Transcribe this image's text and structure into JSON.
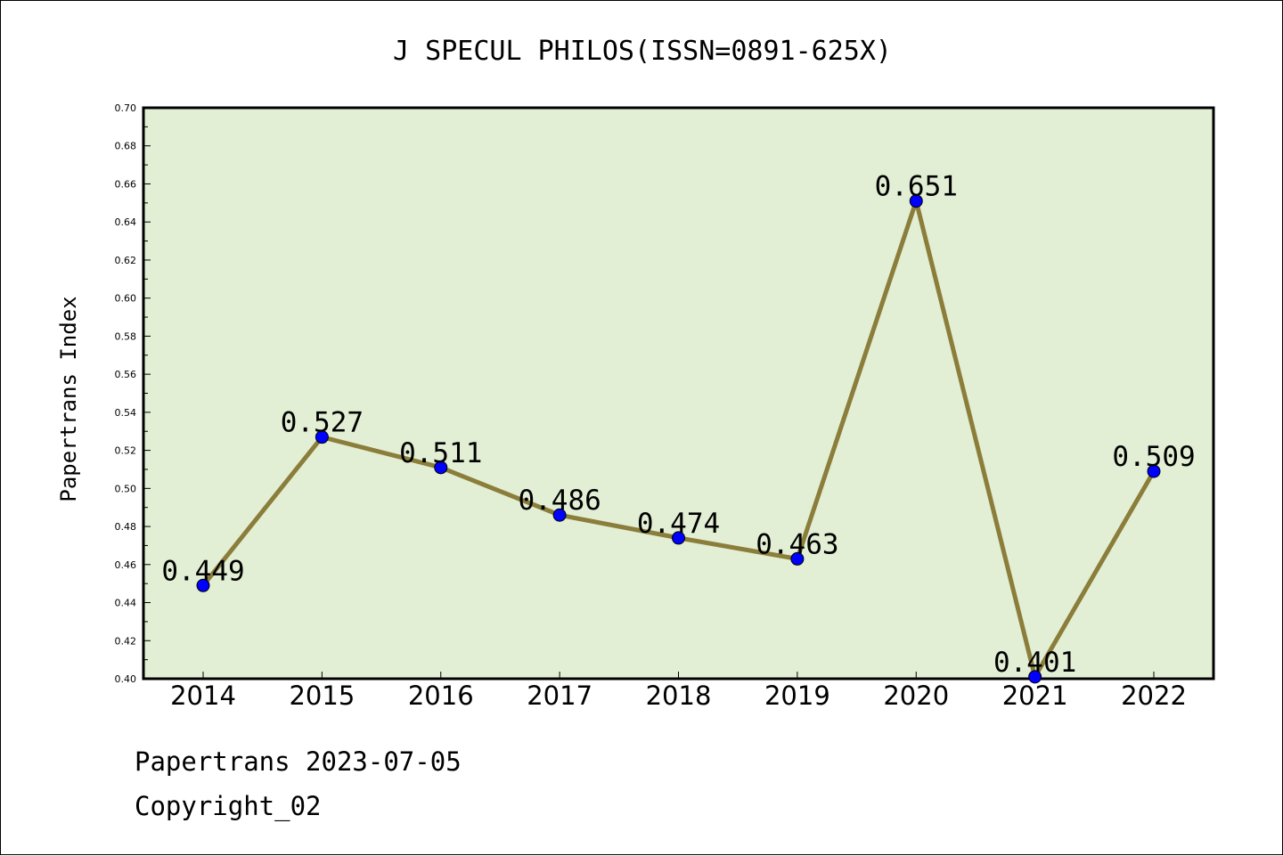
{
  "chart_data": {
    "type": "line",
    "title": "J SPECUL PHILOS(ISSN=0891-625X)",
    "xlabel": "",
    "ylabel": "Papertrans Index",
    "categories": [
      "2014",
      "2015",
      "2016",
      "2017",
      "2018",
      "2019",
      "2020",
      "2021",
      "2022"
    ],
    "series": [
      {
        "values": [
          0.449,
          0.527,
          0.511,
          0.486,
          0.474,
          0.463,
          0.651,
          0.401,
          0.509
        ],
        "data_labels": [
          "0.449",
          "0.527",
          "0.511",
          "0.486",
          "0.474",
          "0.463",
          "0.651",
          "0.401",
          "0.509"
        ]
      }
    ],
    "ylim": [
      0.4,
      0.7
    ],
    "yticks": [
      "0.40",
      "0.42",
      "0.44",
      "0.46",
      "0.48",
      "0.50",
      "0.52",
      "0.54",
      "0.56",
      "0.58",
      "0.60",
      "0.62",
      "0.64",
      "0.66",
      "0.68",
      "0.70"
    ],
    "grid": false,
    "colors": {
      "plot_background": "#e2efd5",
      "line": "#8b7d3a",
      "marker": "#0000ff"
    }
  },
  "footer": {
    "line1": "Papertrans 2023-07-05",
    "line2": "Copyright_02"
  }
}
